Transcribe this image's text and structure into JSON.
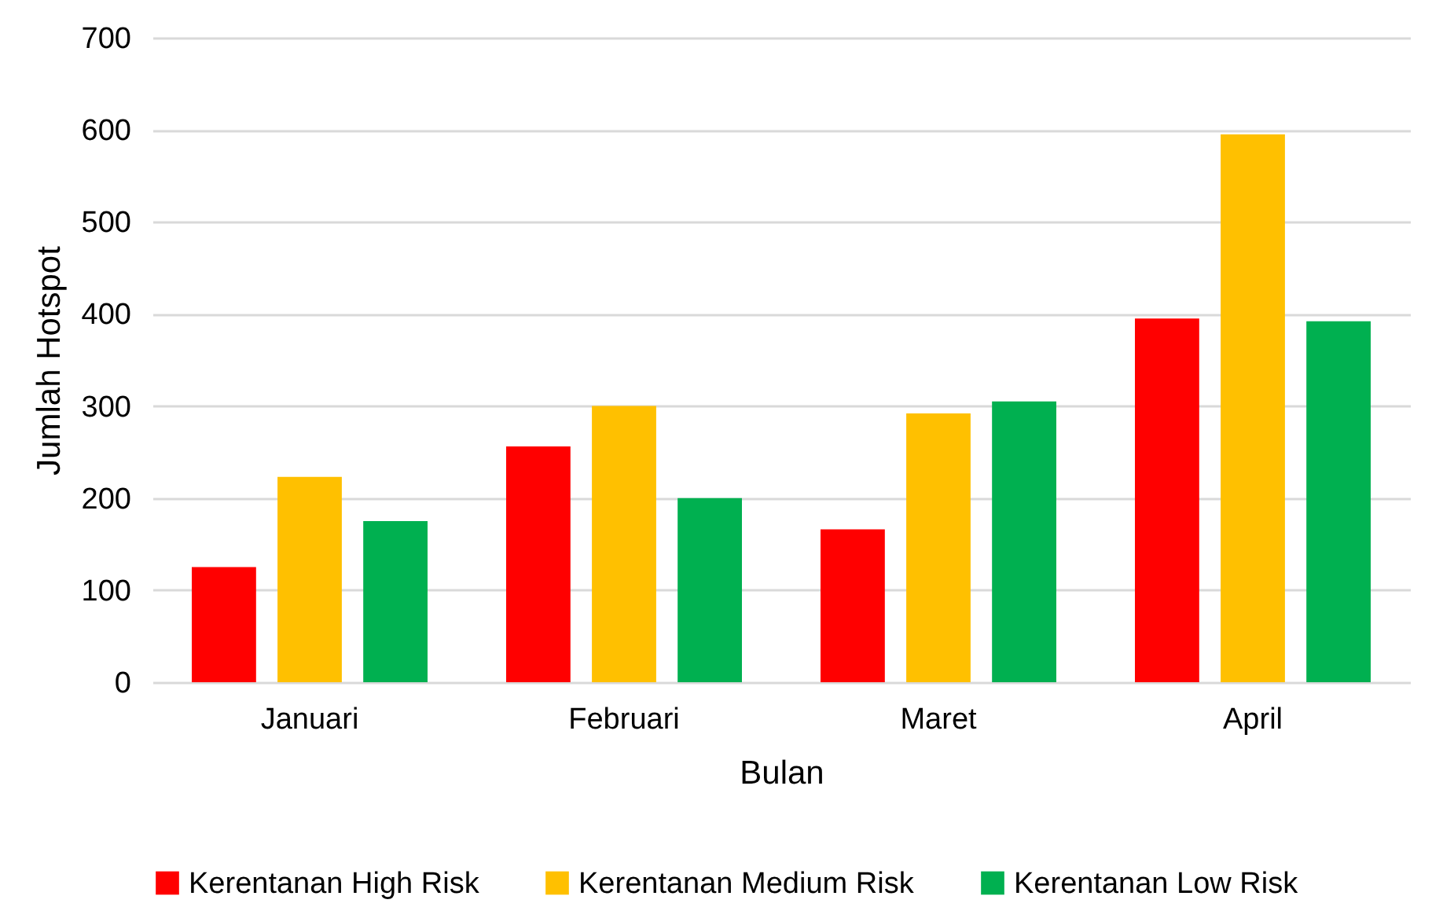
{
  "chart_data": {
    "type": "bar",
    "xlabel": "Bulan",
    "ylabel": "Jumlah Hotspot",
    "categories": [
      "Januari",
      "Februari",
      "Maret",
      "April"
    ],
    "series": [
      {
        "name": "Kerentanan High Risk",
        "color": "#ff0000",
        "values": [
          125,
          256,
          166,
          395
        ]
      },
      {
        "name": "Kerentanan Medium Risk",
        "color": "#ffc000",
        "values": [
          223,
          300,
          292,
          595
        ]
      },
      {
        "name": "Kerentanan Low Risk",
        "color": "#00b050",
        "values": [
          175,
          200,
          305,
          392
        ]
      }
    ],
    "ylim": [
      0,
      700
    ],
    "yticks": [
      0,
      100,
      200,
      300,
      400,
      500,
      600,
      700
    ],
    "grid": "y",
    "legend": "bottom"
  }
}
